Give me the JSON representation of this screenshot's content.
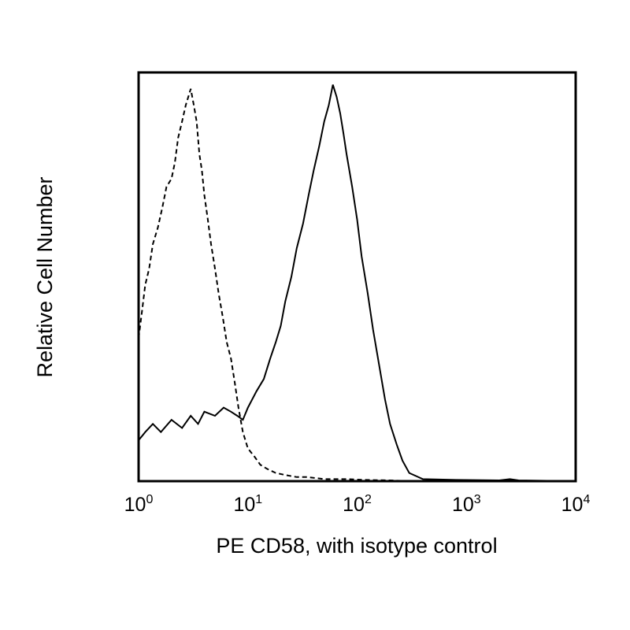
{
  "chart_data": {
    "type": "line",
    "title": "",
    "xlabel": "PE CD58, with isotype control",
    "ylabel": "Relative Cell Number",
    "x_scale": "log",
    "xlim": [
      1,
      10000
    ],
    "ylim": [
      0,
      100
    ],
    "grid": false,
    "x_ticks": [
      {
        "value": 1,
        "base": "10",
        "exp": "0"
      },
      {
        "value": 10,
        "base": "10",
        "exp": "1"
      },
      {
        "value": 100,
        "base": "10",
        "exp": "2"
      },
      {
        "value": 1000,
        "base": "10",
        "exp": "3"
      },
      {
        "value": 10000,
        "base": "10",
        "exp": "4"
      }
    ],
    "series": [
      {
        "style": "dashed",
        "x": [
          1.0,
          1.08,
          1.15,
          1.25,
          1.35,
          1.5,
          1.65,
          1.8,
          2.0,
          2.15,
          2.3,
          2.5,
          2.7,
          2.85,
          3.0,
          3.2,
          3.4,
          3.6,
          3.8,
          4.0,
          4.3,
          4.6,
          5.0,
          5.4,
          5.9,
          6.4,
          7.0,
          7.6,
          8.2,
          9.0,
          10.0,
          11.5,
          13.0,
          15.0,
          18.0,
          22.0,
          28.0,
          35.0,
          50.0,
          80.0,
          120.0,
          200.0,
          300.0
        ],
        "y": [
          35,
          42,
          48,
          52,
          58,
          62,
          67,
          72,
          74,
          78,
          84,
          88,
          92,
          94,
          96,
          92,
          88,
          80,
          76,
          70,
          64,
          58,
          52,
          46,
          40,
          34,
          30,
          24,
          18,
          12,
          8,
          6,
          4,
          3,
          2,
          1.5,
          1,
          1,
          0.5,
          0.5,
          0.3,
          0.2,
          0
        ]
      },
      {
        "style": "solid",
        "x": [
          1.0,
          1.15,
          1.35,
          1.6,
          2.0,
          2.5,
          3.0,
          3.5,
          4.0,
          5.0,
          6.0,
          7.0,
          8.0,
          9.0,
          10.0,
          12.0,
          14.0,
          16.0,
          18.0,
          20.0,
          22.0,
          25.0,
          28.0,
          32.0,
          36.0,
          40.0,
          45.0,
          50.0,
          55.0,
          60.0,
          65.0,
          70.0,
          75.0,
          80.0,
          90.0,
          100.0,
          110.0,
          125.0,
          140.0,
          160.0,
          180.0,
          200.0,
          230.0,
          260.0,
          300.0,
          400.0,
          800.0,
          2000.0,
          2500.0,
          3000.0,
          10000.0
        ],
        "y": [
          10,
          12,
          14,
          12,
          15,
          13,
          16,
          14,
          17,
          16,
          18,
          17,
          16,
          15,
          18,
          22,
          25,
          30,
          34,
          38,
          44,
          50,
          57,
          63,
          70,
          76,
          82,
          88,
          92,
          97,
          94,
          90,
          85,
          80,
          72,
          64,
          55,
          46,
          37,
          28,
          20,
          14,
          9,
          5,
          2,
          0.5,
          0.3,
          0.2,
          0.5,
          0.2,
          0
        ]
      }
    ]
  }
}
